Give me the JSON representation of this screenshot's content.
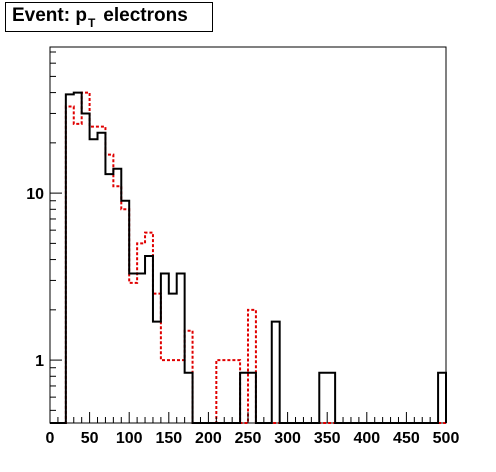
{
  "chart_data": {
    "type": "histogram",
    "title": {
      "prefix": "Event: p",
      "subscript": "T",
      "suffix": "electrons"
    },
    "xlabel": "",
    "ylabel": "",
    "xlim": [
      0,
      500
    ],
    "ylim": [
      0.42,
      75
    ],
    "yscale": "log",
    "bin_width": 10,
    "x_ticks": [
      0,
      50,
      100,
      150,
      200,
      250,
      300,
      350,
      400,
      450,
      500
    ],
    "x_tick_labels": [
      "0",
      "50",
      "100",
      "150",
      "200",
      "250",
      "300",
      "350",
      "400",
      "450",
      "500"
    ],
    "y_ticks": [
      1,
      10
    ],
    "y_tick_labels": [
      "1",
      "10"
    ],
    "series": [
      {
        "style": "solid",
        "color": "#000000",
        "values": [
          0,
          0,
          39,
          40,
          30,
          21,
          23,
          13,
          14,
          9,
          3.3,
          3.3,
          4.2,
          1.7,
          3.3,
          2.5,
          3.3,
          0.84,
          0.42,
          0,
          0,
          0,
          0,
          0,
          0.84,
          0.84,
          0,
          0,
          1.7,
          0,
          0,
          0,
          0,
          0,
          0.84,
          0.84,
          0,
          0,
          0,
          0,
          0,
          0,
          0,
          0,
          0,
          0,
          0,
          0,
          0,
          0.84
        ]
      },
      {
        "style": "dashed",
        "color": "#e00000",
        "values": [
          0,
          0,
          33,
          26,
          40,
          25,
          25,
          17,
          11,
          8,
          2.9,
          5,
          5.8,
          2.5,
          1,
          1,
          1,
          1.5,
          0.42,
          0,
          0,
          1,
          1,
          1,
          0.42,
          2,
          0,
          0,
          0,
          0,
          0,
          0,
          0,
          0,
          0,
          0,
          0,
          0,
          0,
          0,
          0,
          0,
          0,
          0,
          0,
          0,
          0,
          0,
          0,
          0
        ]
      }
    ]
  }
}
